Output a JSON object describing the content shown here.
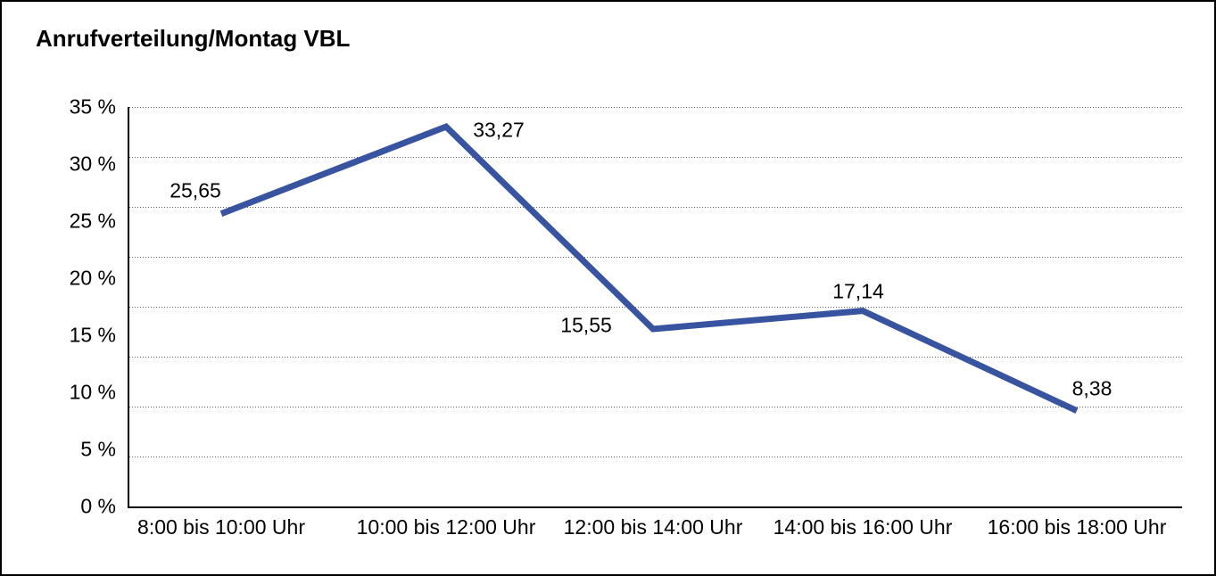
{
  "chart_data": {
    "type": "line",
    "title": "Anrufverteilung/Montag VBL",
    "categories": [
      "8:00 bis 10:00 Uhr",
      "10:00 bis 12:00 Uhr",
      "12:00 bis 14:00 Uhr",
      "14:00 bis 16:00 Uhr",
      "16:00 bis 18:00 Uhr"
    ],
    "series": [
      {
        "name": "Montag VBL",
        "values": [
          25.65,
          33.27,
          15.55,
          17.14,
          8.38
        ],
        "value_labels": [
          "25,65",
          "33,27",
          "15,55",
          "17,14",
          "8,38"
        ]
      }
    ],
    "xlabel": "",
    "ylabel": "",
    "ylim": [
      0,
      35
    ],
    "y_tick_labels": [
      "35 %",
      "30 %",
      "25 %",
      "20 %",
      "15 %",
      "10 %",
      "5 %",
      "0 %"
    ],
    "grid": {
      "horizontal": "dotted",
      "divisions": 8,
      "color": "#5a5a5a"
    },
    "line_color": "#38539F",
    "axis_color": "#000000",
    "background_color": "#ffffff",
    "legend": "none"
  }
}
